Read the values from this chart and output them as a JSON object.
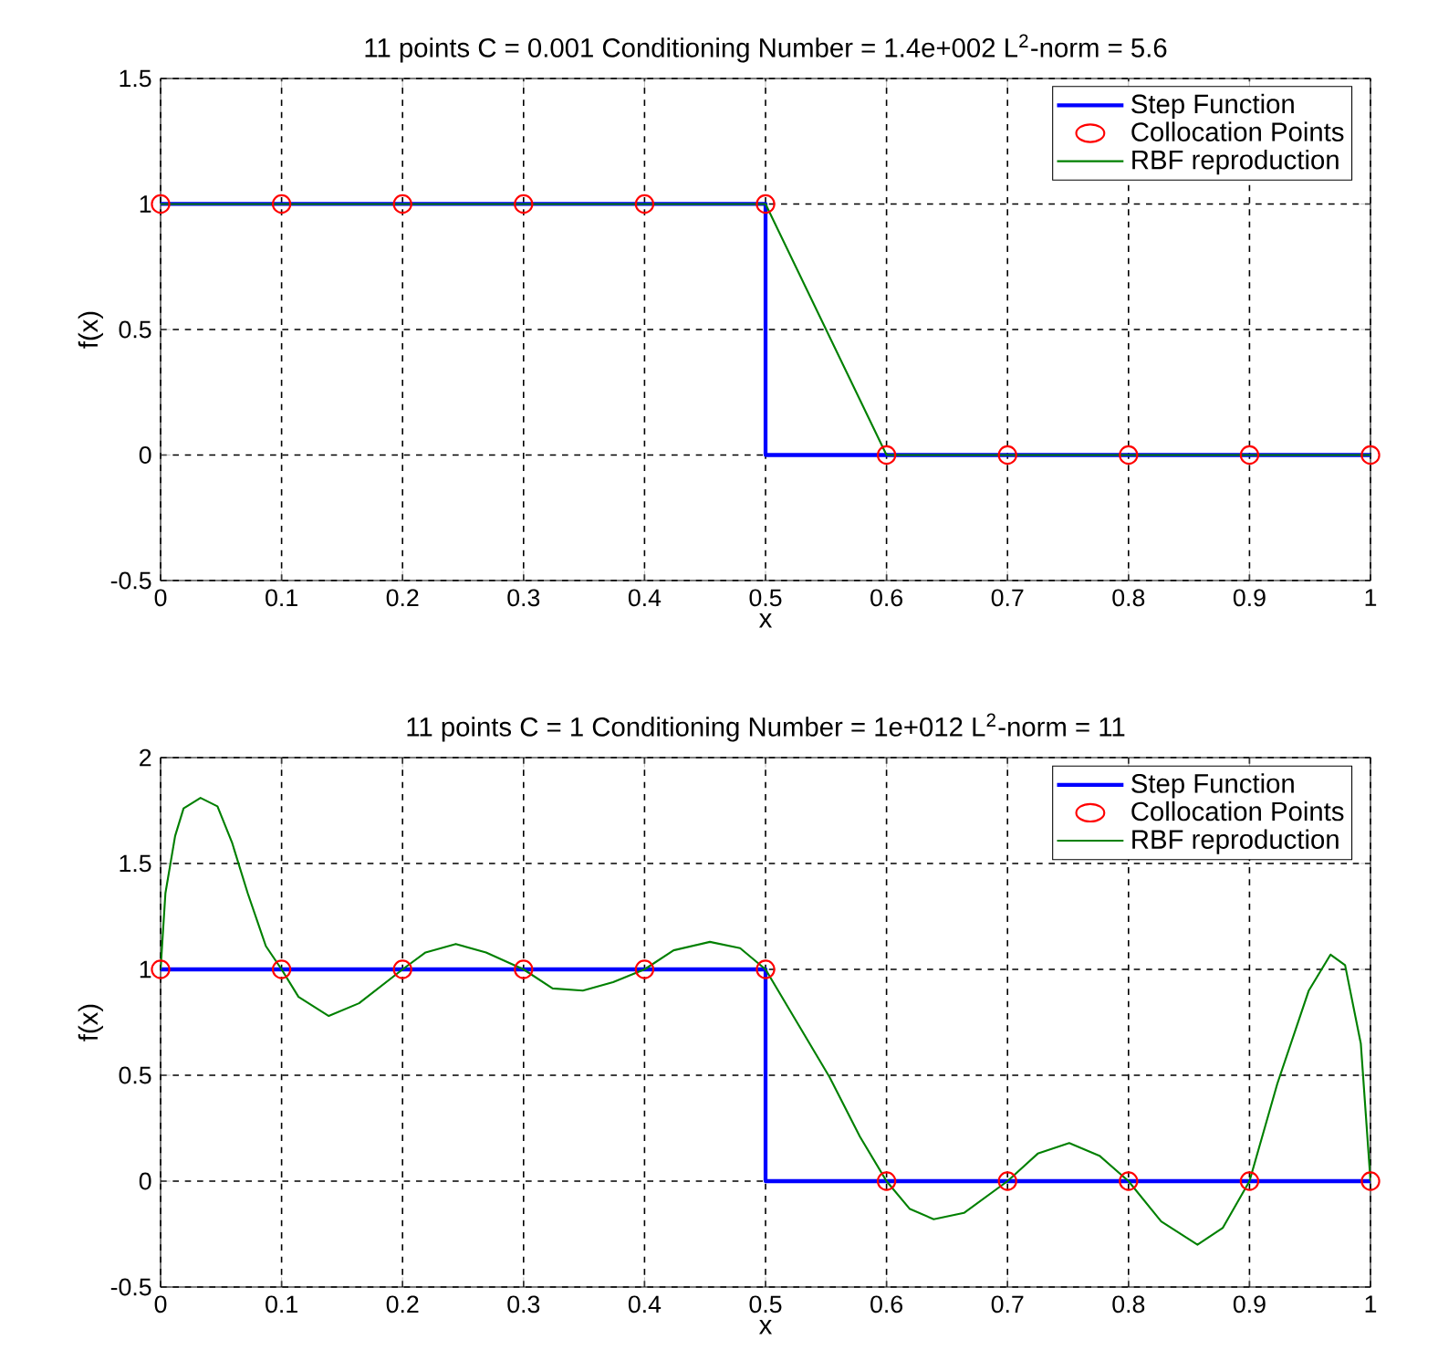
{
  "chart_data": [
    {
      "type": "line",
      "title": "11 points  C = 0.001  Conditioning Number = 1.4e+002  L$^{2}$-norm = 5.6",
      "xlabel": "x",
      "ylabel": "f(x)",
      "xlim": [
        0,
        1
      ],
      "xticks": [
        0,
        0.1,
        0.2,
        0.3,
        0.4,
        0.5,
        0.6,
        0.7,
        0.8,
        0.9,
        1
      ],
      "ylim": [
        -0.5,
        1.5
      ],
      "yticks": [
        -0.5,
        0,
        0.5,
        1,
        1.5
      ],
      "grid": true,
      "legend": "top right",
      "series": [
        {
          "name": "Step Function",
          "type": "line",
          "color": "#0000ff",
          "x": [
            0,
            0.5,
            0.5,
            1
          ],
          "values": [
            1,
            1,
            0,
            0
          ]
        },
        {
          "name": "Collocation Points",
          "type": "scatter",
          "marker": "circle",
          "color": "#ff0000",
          "x": [
            0,
            0.1,
            0.2,
            0.3,
            0.4,
            0.5,
            0.6,
            0.7,
            0.8,
            0.9,
            1
          ],
          "values": [
            1,
            1,
            1,
            1,
            1,
            1,
            0,
            0,
            0,
            0,
            0
          ]
        },
        {
          "name": "RBF reproduction",
          "type": "line",
          "color": "#008000",
          "x": [
            0,
            0.1,
            0.2,
            0.3,
            0.4,
            0.5,
            0.6,
            0.7,
            0.8,
            0.9,
            1
          ],
          "values": [
            1,
            1,
            1,
            1,
            1,
            1,
            0,
            0,
            0,
            0,
            0
          ]
        }
      ]
    },
    {
      "type": "line",
      "title": "11 points  C = 1  Conditioning Number = 1e+012  L$^{2}$-norm = 11",
      "xlabel": "x",
      "ylabel": "f(x)",
      "xlim": [
        0,
        1
      ],
      "xticks": [
        0,
        0.1,
        0.2,
        0.3,
        0.4,
        0.5,
        0.6,
        0.7,
        0.8,
        0.9,
        1
      ],
      "ylim": [
        -0.5,
        2
      ],
      "yticks": [
        -0.5,
        0,
        0.5,
        1,
        1.5,
        2
      ],
      "grid": true,
      "legend": "top right",
      "series": [
        {
          "name": "Step Function",
          "type": "line",
          "color": "#0000ff",
          "x": [
            0,
            0.5,
            0.5,
            1
          ],
          "values": [
            1,
            1,
            0,
            0
          ]
        },
        {
          "name": "Collocation Points",
          "type": "scatter",
          "marker": "circle",
          "color": "#ff0000",
          "x": [
            0,
            0.1,
            0.2,
            0.3,
            0.4,
            0.5,
            0.6,
            0.7,
            0.8,
            0.9,
            1
          ],
          "values": [
            1,
            1,
            1,
            1,
            1,
            1,
            0,
            0,
            0,
            0,
            0
          ]
        },
        {
          "name": "RBF reproduction",
          "type": "line",
          "color": "#008000",
          "x": [
            0,
            0.004,
            0.012,
            0.019,
            0.033,
            0.047,
            0.059,
            0.072,
            0.087,
            0.1,
            0.114,
            0.139,
            0.164,
            0.2,
            0.219,
            0.244,
            0.269,
            0.3,
            0.324,
            0.349,
            0.374,
            0.4,
            0.424,
            0.454,
            0.479,
            0.5,
            0.527,
            0.553,
            0.578,
            0.6,
            0.619,
            0.639,
            0.664,
            0.7,
            0.725,
            0.751,
            0.776,
            0.8,
            0.827,
            0.857,
            0.878,
            0.9,
            0.923,
            0.949,
            0.967,
            0.979,
            0.992,
            1
          ],
          "values": [
            1,
            1.36,
            1.63,
            1.76,
            1.81,
            1.77,
            1.6,
            1.36,
            1.11,
            1,
            0.87,
            0.78,
            0.84,
            1,
            1.08,
            1.12,
            1.08,
            1,
            0.91,
            0.9,
            0.94,
            1,
            1.09,
            1.13,
            1.1,
            1,
            0.74,
            0.49,
            0.21,
            0,
            -0.13,
            -0.18,
            -0.15,
            0,
            0.13,
            0.18,
            0.12,
            0,
            -0.19,
            -0.3,
            -0.22,
            0,
            0.46,
            0.9,
            1.07,
            1.02,
            0.65,
            0
          ]
        }
      ]
    }
  ]
}
